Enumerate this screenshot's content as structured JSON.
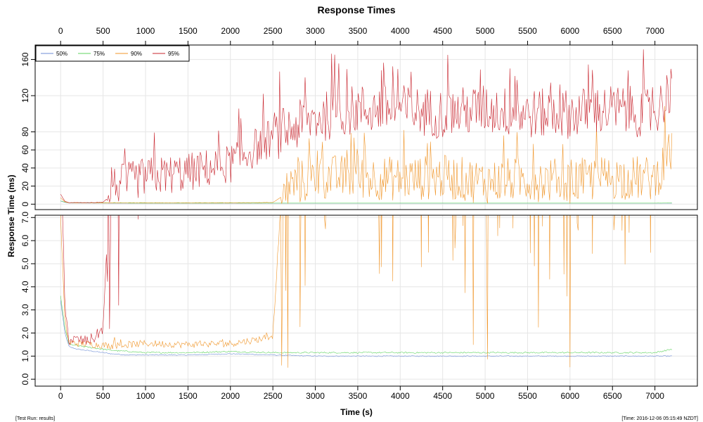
{
  "chart_data": {
    "type": "line",
    "title": "Response Times",
    "xlabel": "Time (s)",
    "ylabel": "Response Time (ms)",
    "xlim": [
      -300,
      7500
    ],
    "x_ticks": [
      0,
      500,
      1000,
      1500,
      2000,
      2500,
      3000,
      3500,
      4000,
      4500,
      5000,
      5500,
      6000,
      6500,
      7000
    ],
    "grid": true,
    "legend_placement": "top-left",
    "panels": [
      {
        "name": "full-range",
        "ylim": [
          -6,
          176
        ],
        "y_ticks": [
          0,
          20,
          40,
          60,
          80,
          120,
          160
        ],
        "y_tick_labels": [
          "0",
          "20",
          "40",
          "60",
          "80",
          "120",
          "160"
        ],
        "x_axis_side": "top"
      },
      {
        "name": "zoomed",
        "ylim": [
          -0.3,
          7.1
        ],
        "y_ticks": [
          0,
          1,
          2,
          3,
          4,
          5,
          6,
          7
        ],
        "y_tick_labels": [
          "0.0",
          "1.0",
          "2.0",
          "3.0",
          "4.0",
          "5.0",
          "6.0",
          "7.0"
        ],
        "x_axis_side": "bottom"
      }
    ],
    "series": [
      {
        "name": "50%",
        "color": "#6f8ed6",
        "points": [
          [
            0,
            3.4
          ],
          [
            50,
            2.0
          ],
          [
            100,
            1.4
          ],
          [
            200,
            1.3
          ],
          [
            400,
            1.2
          ],
          [
            600,
            1.1
          ],
          [
            800,
            1.05
          ],
          [
            1000,
            1.05
          ],
          [
            1500,
            1.05
          ],
          [
            2000,
            1.1
          ],
          [
            2500,
            1.05
          ],
          [
            3000,
            1.0
          ],
          [
            4000,
            1.0
          ],
          [
            5000,
            1.0
          ],
          [
            6000,
            1.0
          ],
          [
            7000,
            1.0
          ],
          [
            7200,
            1.0
          ]
        ]
      },
      {
        "name": "75%",
        "color": "#5fd35f",
        "points": [
          [
            0,
            3.6
          ],
          [
            50,
            2.2
          ],
          [
            100,
            1.5
          ],
          [
            200,
            1.45
          ],
          [
            400,
            1.35
          ],
          [
            600,
            1.25
          ],
          [
            800,
            1.2
          ],
          [
            1000,
            1.15
          ],
          [
            1500,
            1.15
          ],
          [
            2000,
            1.2
          ],
          [
            2500,
            1.15
          ],
          [
            3000,
            1.15
          ],
          [
            4000,
            1.15
          ],
          [
            5000,
            1.15
          ],
          [
            6000,
            1.15
          ],
          [
            7000,
            1.15
          ],
          [
            7200,
            1.3
          ]
        ]
      },
      {
        "name": "90%",
        "color": "#f0962a",
        "points": [
          [
            0,
            7.0
          ],
          [
            50,
            2.5
          ],
          [
            100,
            1.6
          ],
          [
            200,
            1.55
          ],
          [
            400,
            1.5
          ],
          [
            600,
            1.45
          ],
          [
            800,
            1.5
          ],
          [
            1000,
            1.55
          ],
          [
            1500,
            1.5
          ],
          [
            2000,
            1.55
          ],
          [
            2300,
            1.7
          ],
          [
            2500,
            1.9
          ],
          [
            2600,
            8
          ],
          [
            2700,
            20
          ],
          [
            3000,
            30
          ],
          [
            3500,
            30
          ],
          [
            4000,
            28
          ],
          [
            4500,
            30
          ],
          [
            5000,
            25
          ],
          [
            5500,
            28
          ],
          [
            6000,
            25
          ],
          [
            6500,
            30
          ],
          [
            7000,
            28
          ],
          [
            7200,
            60
          ]
        ]
      },
      {
        "name": "95%",
        "color": "#c8242d",
        "points": [
          [
            0,
            11
          ],
          [
            50,
            3.0
          ],
          [
            100,
            1.7
          ],
          [
            200,
            1.7
          ],
          [
            300,
            1.65
          ],
          [
            400,
            1.8
          ],
          [
            500,
            2.2
          ],
          [
            550,
            6
          ],
          [
            600,
            20
          ],
          [
            800,
            25
          ],
          [
            1000,
            30
          ],
          [
            1500,
            35
          ],
          [
            2000,
            45
          ],
          [
            2500,
            75
          ],
          [
            3000,
            95
          ],
          [
            3500,
            105
          ],
          [
            4000,
            105
          ],
          [
            4500,
            100
          ],
          [
            5000,
            105
          ],
          [
            5500,
            100
          ],
          [
            6000,
            100
          ],
          [
            6500,
            105
          ],
          [
            7000,
            100
          ],
          [
            7200,
            130
          ]
        ]
      }
    ]
  },
  "footer": {
    "left": "[Test Run: results]",
    "right": "[Time: 2016-12-06 05:15:49 NZDT]"
  }
}
